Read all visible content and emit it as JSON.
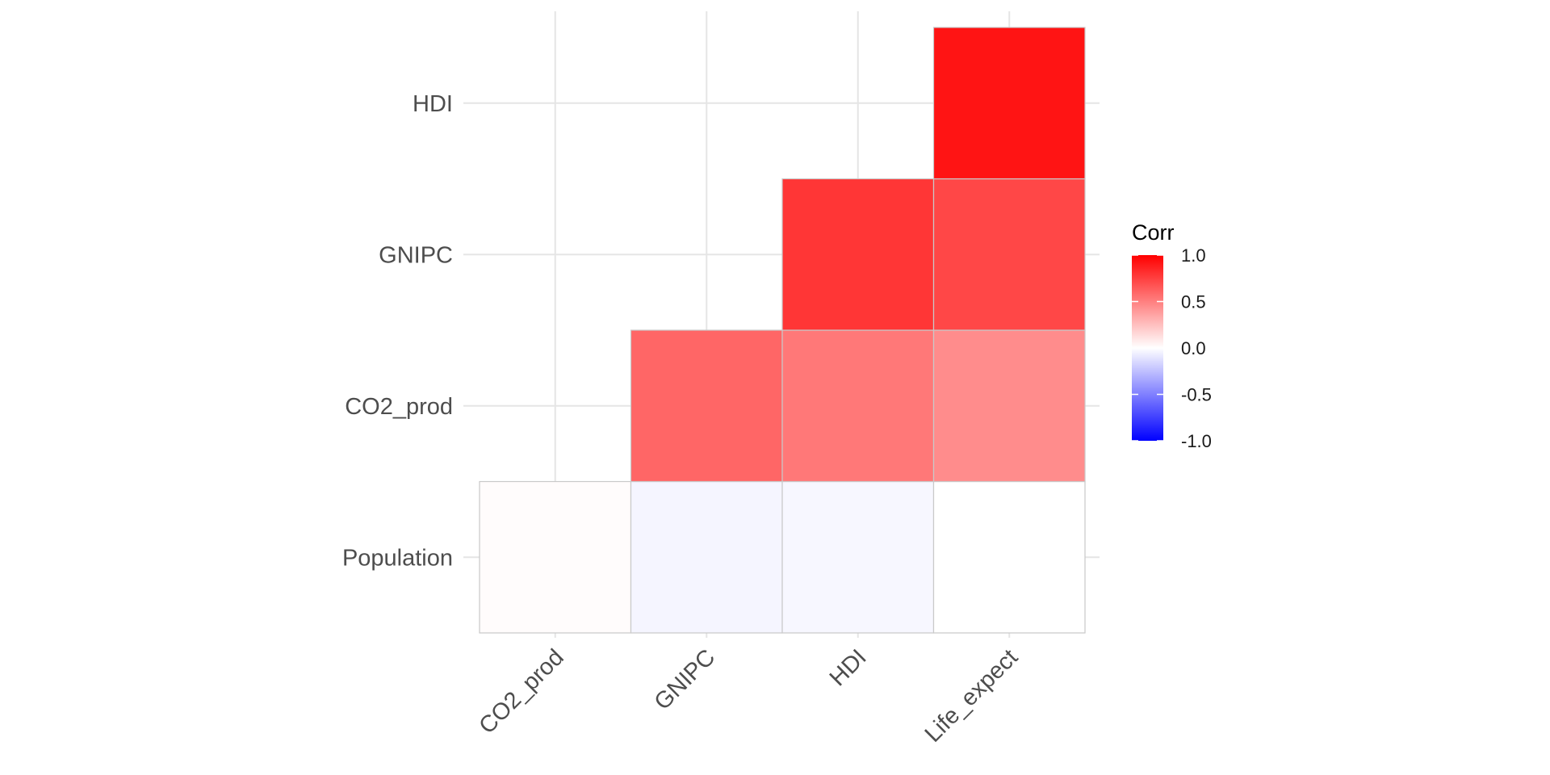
{
  "chart_data": {
    "type": "heatmap",
    "x_categories": [
      "CO2_prod",
      "GNIPC",
      "HDI",
      "Life_expect"
    ],
    "y_categories": [
      "Population",
      "CO2_prod",
      "GNIPC",
      "HDI"
    ],
    "cells": [
      {
        "x": "CO2_prod",
        "y": "Population",
        "value": 0.01
      },
      {
        "x": "GNIPC",
        "y": "Population",
        "value": -0.04
      },
      {
        "x": "HDI",
        "y": "Population",
        "value": -0.03
      },
      {
        "x": "Life_expect",
        "y": "Population",
        "value": 0.0
      },
      {
        "x": "GNIPC",
        "y": "CO2_prod",
        "value": 0.6
      },
      {
        "x": "HDI",
        "y": "CO2_prod",
        "value": 0.53
      },
      {
        "x": "Life_expect",
        "y": "CO2_prod",
        "value": 0.45
      },
      {
        "x": "HDI",
        "y": "GNIPC",
        "value": 0.79
      },
      {
        "x": "Life_expect",
        "y": "GNIPC",
        "value": 0.72
      },
      {
        "x": "Life_expect",
        "y": "HDI",
        "value": 0.92
      }
    ],
    "legend": {
      "title": "Corr",
      "ticks": [
        "1.0",
        "0.5",
        "0.0",
        "-0.5",
        "-1.0"
      ],
      "limits": [
        -1,
        1
      ],
      "placement": "right"
    },
    "colors": {
      "low": "#0000ff",
      "mid": "#ffffff",
      "high": "#ff0000"
    },
    "grid": true
  }
}
